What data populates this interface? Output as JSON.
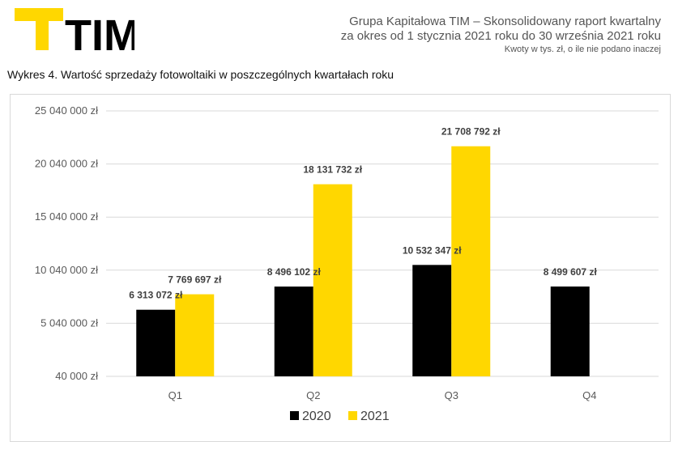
{
  "brand": {
    "logo_text": "TIM",
    "accent": "#FFD700",
    "dark": "#000000"
  },
  "report": {
    "line1": "Grupa Kapitałowa TIM – Skonsolidowany raport kwartalny",
    "line2": "za okres od 1 stycznia 2021 roku do 30 września 2021 roku",
    "note": "Kwoty w tys. zł, o ile nie podano inaczej"
  },
  "chart_caption": "Wykres 4. Wartość sprzedaży fotowoltaiki w poszczególnych kwartałach roku",
  "chart_data": {
    "type": "bar",
    "categories": [
      "Q1",
      "Q2",
      "Q3",
      "Q4"
    ],
    "series": [
      {
        "name": "2020",
        "color": "#000000",
        "values": [
          6313072,
          8496102,
          10532347,
          8499607
        ],
        "labels": [
          "6 313 072 zł",
          "8 496 102 zł",
          "10 532 347 zł",
          "8 499 607 zł"
        ]
      },
      {
        "name": "2021",
        "color": "#FFD700",
        "values": [
          7769697,
          18131732,
          21708792,
          null
        ],
        "labels": [
          "7 769 697 zł",
          "18 131 732 zł",
          "21 708 792 zł",
          ""
        ]
      }
    ],
    "yticks": [
      40000,
      5040000,
      10040000,
      15040000,
      20040000,
      25040000
    ],
    "ytick_labels": [
      "40 000 zł",
      "5 040 000 zł",
      "10 040 000 zł",
      "15 040 000 zł",
      "20 040 000 zł",
      "25 040 000 zł"
    ],
    "ylim": [
      40000,
      25040000
    ],
    "grid": true,
    "legend_position": "bottom"
  }
}
